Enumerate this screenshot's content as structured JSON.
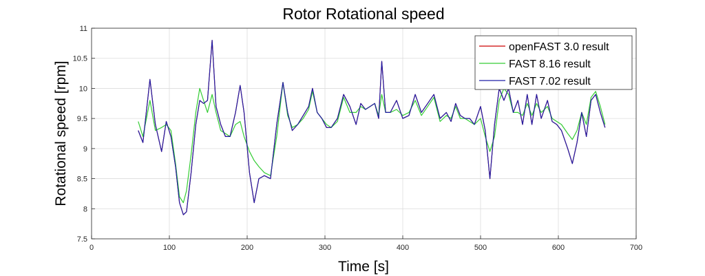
{
  "chart_data": {
    "type": "line",
    "title": "Rotor Rotational speed",
    "xlabel": "Time [s]",
    "ylabel": "Rotational speed [rpm]",
    "xlim": [
      0,
      700
    ],
    "ylim": [
      7.5,
      11
    ],
    "xticks": [
      0,
      100,
      200,
      300,
      400,
      500,
      600,
      700
    ],
    "yticks": [
      7.5,
      8,
      8.5,
      9,
      9.5,
      10,
      10.5,
      11
    ],
    "xtick_labels": [
      "0",
      "100",
      "200",
      "300",
      "400",
      "500",
      "600",
      "700"
    ],
    "ytick_labels": [
      "7.5",
      "8",
      "8.5",
      "9",
      "9.5",
      "10",
      "10.5",
      "11"
    ],
    "grid": true,
    "legend_position": "top-right",
    "series": [
      {
        "name": "openFAST 3.0 result",
        "color": "#cc0000",
        "x": [
          60,
          66,
          75,
          82,
          90,
          96,
          102,
          108,
          113,
          118,
          122,
          128,
          134,
          139,
          144,
          149,
          155,
          160,
          166,
          172,
          178,
          185,
          191,
          196,
          203,
          209,
          215,
          222,
          230,
          238,
          246,
          252,
          258,
          265,
          272,
          279,
          284,
          290,
          296,
          302,
          308,
          316,
          324,
          332,
          340,
          346,
          352,
          358,
          364,
          369,
          373,
          378,
          384,
          392,
          400,
          408,
          416,
          424,
          432,
          440,
          448,
          456,
          462,
          468,
          474,
          480,
          486,
          492,
          500,
          506,
          512,
          518,
          524,
          530,
          536,
          542,
          548,
          554,
          560,
          566,
          572,
          578,
          586,
          592,
          598,
          604,
          612,
          618,
          624,
          630,
          636,
          642,
          648,
          654,
          660
        ],
        "values": [
          9.3,
          9.1,
          10.15,
          9.4,
          8.95,
          9.45,
          9.2,
          8.7,
          8.1,
          7.9,
          7.95,
          8.6,
          9.4,
          9.8,
          9.75,
          9.8,
          10.8,
          9.7,
          9.4,
          9.2,
          9.2,
          9.6,
          10.05,
          9.6,
          8.6,
          8.1,
          8.5,
          8.55,
          8.5,
          9.4,
          10.1,
          9.6,
          9.3,
          9.4,
          9.55,
          9.7,
          10.0,
          9.6,
          9.5,
          9.35,
          9.35,
          9.5,
          9.9,
          9.7,
          9.4,
          9.75,
          9.65,
          9.7,
          9.75,
          9.5,
          10.45,
          9.6,
          9.6,
          9.8,
          9.5,
          9.55,
          9.9,
          9.6,
          9.75,
          9.9,
          9.5,
          9.6,
          9.45,
          9.75,
          9.55,
          9.5,
          9.5,
          9.4,
          9.7,
          9.3,
          8.5,
          9.4,
          10.0,
          9.8,
          10.0,
          9.6,
          9.8,
          9.4,
          9.9,
          9.4,
          9.9,
          9.5,
          9.8,
          9.45,
          9.4,
          9.3,
          9.0,
          8.75,
          9.1,
          9.6,
          9.2,
          9.8,
          9.9,
          9.6,
          9.35
        ]
      },
      {
        "name": "FAST 8.16 result",
        "color": "#33cc33",
        "x": [
          60,
          66,
          75,
          82,
          90,
          96,
          102,
          108,
          113,
          118,
          122,
          128,
          134,
          139,
          144,
          149,
          155,
          160,
          166,
          172,
          178,
          185,
          191,
          196,
          203,
          209,
          215,
          222,
          230,
          238,
          246,
          252,
          258,
          265,
          272,
          279,
          284,
          290,
          296,
          302,
          308,
          316,
          324,
          332,
          340,
          346,
          352,
          358,
          364,
          369,
          373,
          378,
          384,
          392,
          400,
          408,
          416,
          424,
          432,
          440,
          448,
          456,
          462,
          468,
          474,
          480,
          486,
          492,
          500,
          506,
          512,
          518,
          524,
          530,
          536,
          542,
          548,
          554,
          560,
          566,
          572,
          578,
          586,
          592,
          598,
          604,
          612,
          618,
          624,
          630,
          636,
          642,
          648,
          654,
          660
        ],
        "values": [
          9.45,
          9.2,
          9.8,
          9.3,
          9.35,
          9.4,
          9.3,
          8.75,
          8.2,
          8.1,
          8.3,
          8.9,
          9.6,
          10.0,
          9.8,
          9.6,
          9.9,
          9.6,
          9.3,
          9.25,
          9.2,
          9.4,
          9.45,
          9.2,
          8.95,
          8.8,
          8.7,
          8.6,
          8.55,
          9.2,
          10.1,
          9.55,
          9.35,
          9.4,
          9.5,
          9.65,
          9.95,
          9.6,
          9.5,
          9.4,
          9.35,
          9.45,
          9.85,
          9.6,
          9.6,
          9.7,
          9.65,
          9.7,
          9.75,
          9.55,
          9.9,
          9.6,
          9.6,
          9.65,
          9.55,
          9.6,
          9.8,
          9.55,
          9.7,
          9.85,
          9.45,
          9.55,
          9.5,
          9.7,
          9.5,
          9.5,
          9.45,
          9.4,
          9.5,
          9.2,
          8.95,
          9.2,
          9.8,
          10.0,
          9.9,
          9.6,
          9.6,
          9.55,
          9.75,
          9.55,
          9.75,
          9.6,
          9.7,
          9.5,
          9.45,
          9.4,
          9.25,
          9.15,
          9.3,
          9.6,
          9.4,
          9.85,
          9.95,
          9.7,
          9.4
        ]
      },
      {
        "name": "FAST 7.02 result",
        "color": "#1f1fa8",
        "x": [
          60,
          66,
          75,
          82,
          90,
          96,
          102,
          108,
          113,
          118,
          122,
          128,
          134,
          139,
          144,
          149,
          155,
          160,
          166,
          172,
          178,
          185,
          191,
          196,
          203,
          209,
          215,
          222,
          230,
          238,
          246,
          252,
          258,
          265,
          272,
          279,
          284,
          290,
          296,
          302,
          308,
          316,
          324,
          332,
          340,
          346,
          352,
          358,
          364,
          369,
          373,
          378,
          384,
          392,
          400,
          408,
          416,
          424,
          432,
          440,
          448,
          456,
          462,
          468,
          474,
          480,
          486,
          492,
          500,
          506,
          512,
          518,
          524,
          530,
          536,
          542,
          548,
          554,
          560,
          566,
          572,
          578,
          586,
          592,
          598,
          604,
          612,
          618,
          624,
          630,
          636,
          642,
          648,
          654,
          660
        ],
        "values": [
          9.3,
          9.1,
          10.15,
          9.4,
          8.95,
          9.45,
          9.2,
          8.7,
          8.1,
          7.9,
          7.95,
          8.6,
          9.4,
          9.8,
          9.75,
          9.8,
          10.8,
          9.7,
          9.4,
          9.2,
          9.2,
          9.6,
          10.05,
          9.6,
          8.6,
          8.1,
          8.5,
          8.55,
          8.5,
          9.4,
          10.1,
          9.6,
          9.3,
          9.4,
          9.55,
          9.7,
          10.0,
          9.6,
          9.5,
          9.35,
          9.35,
          9.5,
          9.9,
          9.7,
          9.4,
          9.75,
          9.65,
          9.7,
          9.75,
          9.5,
          10.45,
          9.6,
          9.6,
          9.8,
          9.5,
          9.55,
          9.9,
          9.6,
          9.75,
          9.9,
          9.5,
          9.6,
          9.45,
          9.75,
          9.55,
          9.5,
          9.5,
          9.4,
          9.7,
          9.3,
          8.5,
          9.4,
          10.0,
          9.8,
          10.0,
          9.6,
          9.8,
          9.4,
          9.9,
          9.4,
          9.9,
          9.5,
          9.8,
          9.45,
          9.4,
          9.3,
          9.0,
          8.75,
          9.1,
          9.6,
          9.2,
          9.8,
          9.9,
          9.6,
          9.35
        ]
      }
    ]
  }
}
